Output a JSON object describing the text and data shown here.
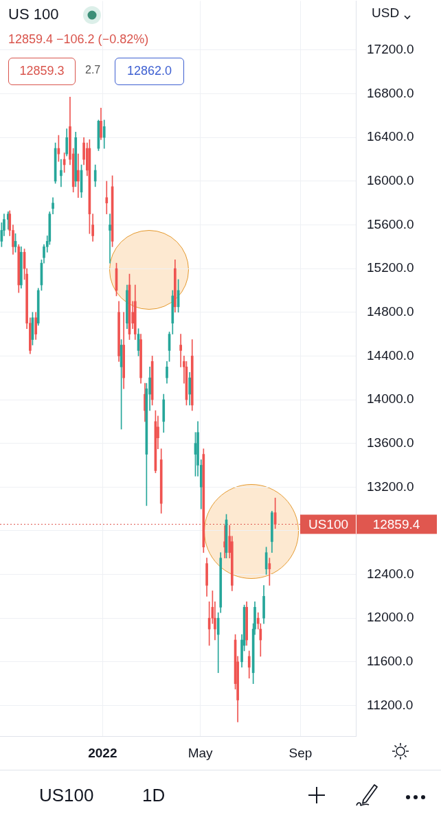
{
  "chart_data": {
    "type": "candlestick",
    "title": "US 100",
    "subtitle": "12859.4 −106.2 (−0.82%)",
    "ylabel": "USD",
    "annotations": [
      "12859.3",
      "2.7",
      "12862.0",
      "US100",
      "1D",
      "12859.4"
    ],
    "x": [
      "2021-08-30",
      "2021-09-02",
      "2021-09-07",
      "2021-09-09",
      "2021-09-13",
      "2021-09-16",
      "2021-09-20",
      "2021-09-23",
      "2021-09-27",
      "2021-09-30",
      "2021-10-04",
      "2021-10-07",
      "2021-10-11",
      "2021-10-14",
      "2021-10-18",
      "2021-10-21",
      "2021-10-25",
      "2021-10-28",
      "2021-11-01",
      "2021-11-04",
      "2021-11-08",
      "2021-11-11",
      "2021-11-15",
      "2021-11-18",
      "2021-11-22",
      "2021-11-26",
      "2021-11-29",
      "2021-12-02",
      "2021-12-06",
      "2021-12-09",
      "2021-12-13",
      "2021-12-16",
      "2021-12-20",
      "2021-12-23",
      "2021-12-27",
      "2021-12-30",
      "2022-01-03",
      "2022-01-06",
      "2022-01-10",
      "2022-01-13",
      "2022-01-18",
      "2022-01-21",
      "2022-01-24",
      "2022-01-27",
      "2022-01-31",
      "2022-02-03",
      "2022-02-07",
      "2022-02-10",
      "2022-02-14",
      "2022-02-17",
      "2022-02-22",
      "2022-02-24",
      "2022-02-28",
      "2022-03-03",
      "2022-03-07",
      "2022-03-10",
      "2022-03-14",
      "2022-03-17",
      "2022-03-21",
      "2022-03-24",
      "2022-03-28",
      "2022-03-31",
      "2022-04-04",
      "2022-04-07",
      "2022-04-11",
      "2022-04-14",
      "2022-04-18",
      "2022-04-21",
      "2022-04-25",
      "2022-04-28",
      "2022-05-02",
      "2022-05-05",
      "2022-05-09",
      "2022-05-12",
      "2022-05-16",
      "2022-05-19",
      "2022-05-23",
      "2022-05-26",
      "2022-05-31",
      "2022-06-02",
      "2022-06-06",
      "2022-06-09",
      "2022-06-13",
      "2022-06-16",
      "2022-06-21",
      "2022-06-24",
      "2022-06-27",
      "2022-06-30",
      "2022-07-05",
      "2022-07-07",
      "2022-07-11",
      "2022-07-14",
      "2022-07-18",
      "2022-07-21",
      "2022-07-25",
      "2022-07-28",
      "2022-08-01"
    ],
    "ohlc": [
      [
        15450,
        15620,
        15400,
        15550
      ],
      [
        15550,
        15700,
        15500,
        15650
      ],
      [
        15650,
        15720,
        15560,
        15700
      ],
      [
        15700,
        15730,
        15500,
        15550
      ],
      [
        15550,
        15600,
        15330,
        15400
      ],
      [
        15400,
        15520,
        15350,
        15450
      ],
      [
        15400,
        15420,
        14980,
        15050
      ],
      [
        15050,
        15400,
        15020,
        15350
      ],
      [
        15350,
        15380,
        15100,
        15200
      ],
      [
        15150,
        15200,
        14650,
        14700
      ],
      [
        14700,
        14750,
        14420,
        14450
      ],
      [
        14550,
        14800,
        14500,
        14750
      ],
      [
        14750,
        14800,
        14550,
        14600
      ],
      [
        14700,
        15020,
        14680,
        15000
      ],
      [
        15050,
        15280,
        15000,
        15250
      ],
      [
        15300,
        15420,
        15250,
        15400
      ],
      [
        15400,
        15500,
        15350,
        15450
      ],
      [
        15450,
        15720,
        15420,
        15700
      ],
      [
        15750,
        15850,
        15700,
        15800
      ],
      [
        16000,
        16350,
        15980,
        16300
      ],
      [
        16300,
        16420,
        16180,
        16250
      ],
      [
        16050,
        16200,
        15950,
        16100
      ],
      [
        16200,
        16260,
        16080,
        16150
      ],
      [
        16250,
        16480,
        16230,
        16400
      ],
      [
        16500,
        16770,
        16150,
        16200
      ],
      [
        16250,
        16300,
        15900,
        15950
      ],
      [
        16000,
        16450,
        15950,
        16400
      ],
      [
        16100,
        16250,
        15850,
        16000
      ],
      [
        15900,
        16150,
        15850,
        16100
      ],
      [
        16350,
        16400,
        16150,
        16200
      ],
      [
        16300,
        16350,
        16050,
        16100
      ],
      [
        16300,
        16380,
        15520,
        15700
      ],
      [
        15600,
        15700,
        15450,
        15500
      ],
      [
        16000,
        16150,
        15950,
        16100
      ],
      [
        16300,
        16560,
        16280,
        16550
      ],
      [
        16550,
        16670,
        16380,
        16400
      ],
      [
        16400,
        16560,
        16300,
        16500
      ],
      [
        15850,
        16000,
        15700,
        15800
      ],
      [
        15550,
        15700,
        15250,
        15600
      ],
      [
        15950,
        16050,
        15400,
        15450
      ],
      [
        15200,
        15250,
        14950,
        15000
      ],
      [
        14800,
        14900,
        14350,
        14400
      ],
      [
        14300,
        14550,
        13730,
        14500
      ],
      [
        14500,
        14800,
        14100,
        14200
      ],
      [
        14700,
        15050,
        14650,
        15000
      ],
      [
        15050,
        15150,
        14550,
        14600
      ],
      [
        14800,
        14900,
        14650,
        14700
      ],
      [
        14900,
        15050,
        14550,
        14600
      ],
      [
        14450,
        14650,
        14400,
        14600
      ],
      [
        14550,
        14600,
        14150,
        14200
      ],
      [
        14050,
        14150,
        13800,
        13900
      ],
      [
        13500,
        14150,
        13030,
        14100
      ],
      [
        14050,
        14300,
        13900,
        14200
      ],
      [
        14350,
        14400,
        13950,
        14000
      ],
      [
        13800,
        13900,
        13330,
        13350
      ],
      [
        13750,
        13850,
        13550,
        13650
      ],
      [
        13450,
        13550,
        12960,
        13050
      ],
      [
        13800,
        14050,
        13700,
        14000
      ],
      [
        14200,
        14350,
        14150,
        14300
      ],
      [
        14450,
        14620,
        14350,
        14600
      ],
      [
        14700,
        15000,
        14600,
        14950
      ],
      [
        15200,
        15280,
        14800,
        14850
      ],
      [
        14850,
        15100,
        14800,
        15000
      ],
      [
        14500,
        14600,
        14300,
        14450
      ],
      [
        14350,
        14400,
        14150,
        14300
      ],
      [
        14300,
        14350,
        13950,
        14000
      ],
      [
        14050,
        14250,
        13950,
        14200
      ],
      [
        14400,
        14550,
        13900,
        13950
      ],
      [
        13500,
        13700,
        13300,
        13600
      ],
      [
        13400,
        13800,
        13300,
        13700
      ],
      [
        13200,
        13450,
        13000,
        13400
      ],
      [
        13500,
        13550,
        12600,
        12650
      ],
      [
        12500,
        12550,
        12200,
        12300
      ],
      [
        12000,
        12150,
        11750,
        11900
      ],
      [
        12100,
        12250,
        11950,
        12000
      ],
      [
        12000,
        12150,
        11800,
        11900
      ],
      [
        11850,
        12050,
        11500,
        12000
      ],
      [
        12100,
        12600,
        12050,
        12550
      ],
      [
        12700,
        12850,
        12550,
        12650
      ],
      [
        12600,
        12950,
        12550,
        12900
      ],
      [
        12750,
        12850,
        12550,
        12600
      ],
      [
        12700,
        12750,
        12250,
        12300
      ],
      [
        11800,
        11850,
        11350,
        11400
      ],
      [
        11600,
        11650,
        11050,
        11250
      ],
      [
        11600,
        11850,
        11550,
        11800
      ],
      [
        11750,
        12120,
        11700,
        12100
      ],
      [
        12100,
        12150,
        11750,
        11800
      ],
      [
        11650,
        11700,
        11450,
        11550
      ],
      [
        11500,
        11950,
        11400,
        11900
      ],
      [
        11900,
        12150,
        11850,
        12100
      ],
      [
        12000,
        12050,
        11900,
        11950
      ],
      [
        11900,
        11950,
        11650,
        11800
      ],
      [
        12000,
        12300,
        11950,
        12200
      ],
      [
        12450,
        12650,
        12400,
        12600
      ],
      [
        12500,
        12550,
        12300,
        12450
      ],
      [
        12700,
        12980,
        12600,
        12965.6
      ],
      [
        12965.6,
        13100,
        12820,
        12859.4
      ]
    ],
    "colors": [
      "#26a69a",
      "#26a69a",
      "#26a69a",
      "#ef5350",
      "#ef5350",
      "#26a69a",
      "#ef5350",
      "#26a69a",
      "#ef5350",
      "#ef5350",
      "#ef5350",
      "#26a69a",
      "#ef5350",
      "#26a69a",
      "#26a69a",
      "#26a69a",
      "#26a69a",
      "#26a69a",
      "#26a69a",
      "#26a69a",
      "#ef5350",
      "#26a69a",
      "#ef5350",
      "#26a69a",
      "#ef5350",
      "#ef5350",
      "#26a69a",
      "#ef5350",
      "#26a69a",
      "#ef5350",
      "#ef5350",
      "#ef5350",
      "#ef5350",
      "#26a69a",
      "#26a69a",
      "#ef5350",
      "#26a69a",
      "#ef5350",
      "#26a69a",
      "#ef5350",
      "#ef5350",
      "#ef5350",
      "#26a69a",
      "#ef5350",
      "#26a69a",
      "#ef5350",
      "#ef5350",
      "#ef5350",
      "#26a69a",
      "#ef5350",
      "#ef5350",
      "#26a69a",
      "#26a69a",
      "#ef5350",
      "#ef5350",
      "#ef5350",
      "#ef5350",
      "#26a69a",
      "#26a69a",
      "#26a69a",
      "#26a69a",
      "#ef5350",
      "#26a69a",
      "#ef5350",
      "#ef5350",
      "#ef5350",
      "#26a69a",
      "#ef5350",
      "#26a69a",
      "#26a69a",
      "#26a69a",
      "#ef5350",
      "#ef5350",
      "#ef5350",
      "#ef5350",
      "#ef5350",
      "#26a69a",
      "#26a69a",
      "#ef5350",
      "#26a69a",
      "#ef5350",
      "#ef5350",
      "#ef5350",
      "#ef5350",
      "#26a69a",
      "#26a69a",
      "#ef5350",
      "#ef5350",
      "#26a69a",
      "#26a69a",
      "#ef5350",
      "#ef5350",
      "#26a69a",
      "#26a69a",
      "#ef5350",
      "#26a69a",
      "#ef5350"
    ],
    "xlim": [
      "2021-08-28",
      "2022-11-08"
    ],
    "xticks": [
      {
        "value": "2022-01-01",
        "label": "2022"
      },
      {
        "value": "2022-05-01",
        "label": "May"
      },
      {
        "value": "2022-09-01",
        "label": "Sep"
      }
    ],
    "ylim": [
      10920,
      17650
    ],
    "yticks": [
      {
        "value": 11200,
        "label": "11200.0"
      },
      {
        "value": 11600,
        "label": "11600.0"
      },
      {
        "value": 12000,
        "label": "12000.0"
      },
      {
        "value": 12400,
        "label": "12400.0"
      },
      {
        "value": 12800,
        "label": null
      },
      {
        "value": 13200,
        "label": "13200.0"
      },
      {
        "value": 13600,
        "label": "13600.0"
      },
      {
        "value": 14000,
        "label": "14000.0"
      },
      {
        "value": 14400,
        "label": "14400.0"
      },
      {
        "value": 14800,
        "label": "14800.0"
      },
      {
        "value": 15200,
        "label": "15200.0"
      },
      {
        "value": 15600,
        "label": "15600.0"
      },
      {
        "value": 16000,
        "label": "16000.0"
      },
      {
        "value": 16400,
        "label": "16400.0"
      },
      {
        "value": 16800,
        "label": "16800.0"
      },
      {
        "value": 17200,
        "label": "17200.0"
      }
    ],
    "ref_lines": [
      {
        "axis": "y",
        "value": 12859.4,
        "label": "US100",
        "color": "#e0574f",
        "line_style": "dotted"
      }
    ],
    "grid": true,
    "legend": false
  }
}
